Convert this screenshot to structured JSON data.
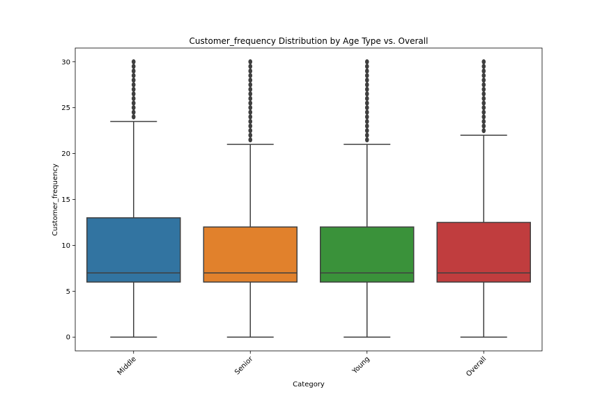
{
  "chart_data": {
    "type": "box",
    "title": "Customer_frequency Distribution by Age Type vs. Overall",
    "xlabel": "Category",
    "ylabel": "Customer_frequency",
    "categories": [
      "Middle",
      "Senior",
      "Young",
      "Overall"
    ],
    "ylim": [
      -1.5,
      31.5
    ],
    "yticks": [
      0,
      5,
      10,
      15,
      20,
      25,
      30
    ],
    "grid": false,
    "boxes": [
      {
        "category": "Middle",
        "color": "#3274a1",
        "whisker_low": 0,
        "q1": 6,
        "median": 7,
        "q3": 13,
        "whisker_high": 23.5,
        "outliers": [
          24,
          24.5,
          25,
          25.5,
          26,
          26.5,
          27,
          27.5,
          28,
          28.5,
          29,
          29.5,
          30
        ]
      },
      {
        "category": "Senior",
        "color": "#e1812c",
        "whisker_low": 0,
        "q1": 6,
        "median": 7,
        "q3": 12,
        "whisker_high": 21,
        "outliers": [
          21.5,
          22,
          22.5,
          23,
          23.5,
          24,
          24.5,
          25,
          25.5,
          26,
          26.5,
          27,
          27.5,
          28,
          28.5,
          29,
          29.5,
          30
        ]
      },
      {
        "category": "Young",
        "color": "#3a923a",
        "whisker_low": 0,
        "q1": 6,
        "median": 7,
        "q3": 12,
        "whisker_high": 21,
        "outliers": [
          21.5,
          22,
          22.5,
          23,
          23.5,
          24,
          24.5,
          25,
          25.5,
          26,
          26.5,
          27,
          27.5,
          28,
          28.5,
          29,
          29.5,
          30
        ]
      },
      {
        "category": "Overall",
        "color": "#c03d3e",
        "whisker_low": 0,
        "q1": 6,
        "median": 7,
        "q3": 12.5,
        "whisker_high": 22,
        "outliers": [
          22.5,
          23,
          23.5,
          24,
          24.5,
          25,
          25.5,
          26,
          26.5,
          27,
          27.5,
          28,
          28.5,
          29,
          29.5,
          30
        ]
      }
    ]
  }
}
